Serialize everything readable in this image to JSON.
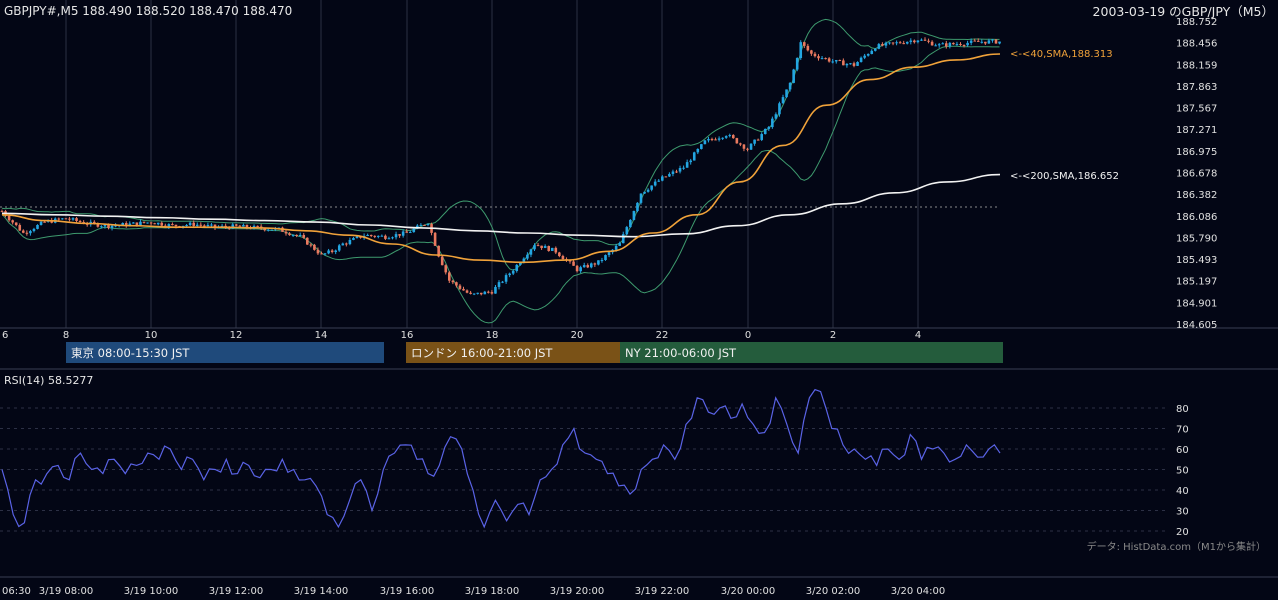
{
  "header": {
    "symbol_line": "GBPJPY#,M5 188.490 188.520 188.470 188.470",
    "title": "2003-03-19 のGBP/JPY（M5）"
  },
  "colors": {
    "background": "#030615",
    "grid_v": "#2b3044",
    "grid_dash": "#2c3045",
    "candle_up": "#23a6e2",
    "candle_down": "#e9795f",
    "sma40": "#f0a23a",
    "sma200": "#f2f2f2",
    "bollinger": "#3e9a6e",
    "rsi": "#5a63e6",
    "session_tokyo": "#1f4a7b",
    "session_london": "#7a5217",
    "session_ny": "#245c3c"
  },
  "price_axis": {
    "ticks": [
      "188.752",
      "188.456",
      "188.159",
      "187.863",
      "187.567",
      "187.271",
      "186.975",
      "186.678",
      "186.382",
      "186.086",
      "185.790",
      "185.493",
      "185.197",
      "184.901",
      "184.605"
    ],
    "min": 184.605,
    "max": 188.752
  },
  "time_axis": {
    "labels": [
      "6",
      "8",
      "10",
      "12",
      "14",
      "16",
      "18",
      "20",
      "22",
      "0",
      "2",
      "4"
    ]
  },
  "annotations": {
    "sma40": "<-<40,SMA,188.313",
    "sma200": "<-<200,SMA,186.652"
  },
  "sessions": [
    {
      "label": "東京 08:00-15:30 JST",
      "color": "#1f4a7b"
    },
    {
      "label": "ロンドン 16:00-21:00 JST",
      "color": "#7a5217"
    },
    {
      "label": "NY 21:00-06:00 JST",
      "color": "#245c3c"
    }
  ],
  "rsi": {
    "label": "RSI(14) 58.5277",
    "ticks": [
      "80",
      "70",
      "60",
      "50",
      "40",
      "30",
      "20"
    ]
  },
  "bottom_axis": {
    "labels": [
      "06:30",
      "3/19 08:00",
      "3/19 10:00",
      "3/19 12:00",
      "3/19 14:00",
      "3/19 16:00",
      "3/19 18:00",
      "3/19 20:00",
      "3/19 22:00",
      "3/20 00:00",
      "3/20 02:00",
      "3/20 04:00"
    ]
  },
  "credit": "データ: HistData.com（M1から集計）",
  "chart_data": {
    "type": "candlestick",
    "title": "2003-03-19 のGBP/JPY（M5）",
    "interval": "M5",
    "ylim": [
      184.605,
      188.752
    ],
    "close_path": {
      "times": [
        "06:30",
        "07:00",
        "07:30",
        "08:00",
        "08:30",
        "09:00",
        "09:30",
        "10:00",
        "10:30",
        "11:00",
        "11:30",
        "12:00",
        "12:30",
        "13:00",
        "13:30",
        "14:00",
        "14:15",
        "14:30",
        "15:00",
        "15:30",
        "16:00",
        "16:30",
        "16:45",
        "17:00",
        "17:30",
        "18:00",
        "18:30",
        "19:00",
        "19:30",
        "20:00",
        "20:30",
        "21:00",
        "21:30",
        "22:00",
        "22:30",
        "23:00",
        "23:30",
        "00:00",
        "00:30",
        "01:00",
        "01:15",
        "01:30",
        "02:00",
        "02:30",
        "03:00",
        "03:30",
        "04:00",
        "04:30",
        "05:30"
      ],
      "values": [
        186.15,
        185.85,
        186.0,
        186.05,
        185.98,
        185.95,
        185.97,
        186.0,
        185.95,
        185.97,
        185.93,
        185.94,
        185.92,
        185.9,
        185.8,
        185.55,
        185.6,
        185.7,
        185.82,
        185.8,
        185.85,
        186.0,
        185.55,
        185.2,
        185.0,
        185.05,
        185.35,
        185.7,
        185.6,
        185.35,
        185.45,
        185.7,
        186.4,
        186.6,
        186.75,
        187.1,
        187.2,
        187.0,
        187.3,
        187.9,
        188.45,
        188.3,
        188.2,
        188.15,
        188.4,
        188.45,
        188.5,
        188.42,
        188.47
      ]
    },
    "sma40": {
      "last": 188.313,
      "values": [
        186.1,
        186.02,
        185.98,
        185.95,
        185.93,
        185.93,
        185.92,
        185.88,
        185.82,
        185.7,
        185.55,
        185.48,
        185.45,
        185.48,
        185.6,
        185.85,
        186.1,
        186.55,
        187.05,
        187.6,
        187.95,
        188.12,
        188.22,
        188.3
      ]
    },
    "sma200": {
      "last": 186.652,
      "values": [
        186.12,
        186.1,
        186.08,
        186.06,
        186.04,
        186.02,
        186.0,
        185.96,
        185.92,
        185.88,
        185.85,
        185.82,
        185.8,
        185.84,
        185.95,
        186.1,
        186.25,
        186.4,
        186.55,
        186.65
      ]
    },
    "rsi": {
      "period": 14,
      "last": 58.5277,
      "ylim": [
        20,
        80
      ],
      "values": [
        50,
        28,
        24,
        45,
        48,
        52,
        45,
        58,
        50,
        48,
        55,
        48,
        52,
        58,
        55,
        60,
        50,
        55,
        45,
        50,
        55,
        48,
        52,
        46,
        50,
        55,
        50,
        45,
        42,
        28,
        22,
        35,
        45,
        30,
        50,
        58,
        62,
        55,
        48,
        52,
        66,
        60,
        40,
        22,
        35,
        25,
        33,
        28,
        45,
        50,
        62,
        70,
        58,
        55,
        48,
        42,
        38,
        50,
        55,
        62,
        55,
        72,
        85,
        78,
        80,
        75,
        82,
        72,
        68,
        85,
        72,
        58,
        85,
        88,
        70,
        62,
        60,
        55,
        52,
        60,
        55,
        67,
        55,
        60,
        58,
        55,
        62,
        56,
        60,
        58
      ]
    }
  }
}
